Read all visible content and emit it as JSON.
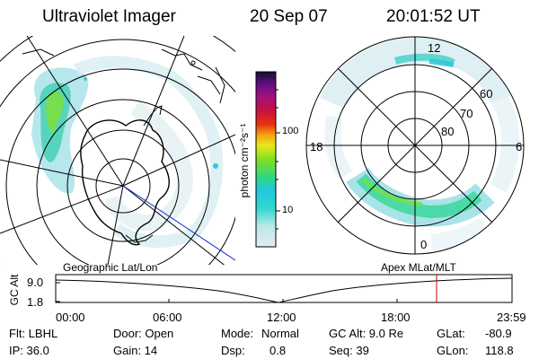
{
  "header": {
    "instrument": "Ultraviolet Imager",
    "date": "20 Sep 07",
    "time": "20:01:52 UT"
  },
  "colorbar": {
    "unit_label": "photon cm⁻²s⁻¹",
    "ticks": [
      "100",
      "10"
    ]
  },
  "right_map": {
    "mlt_labels": [
      "12",
      "18",
      "6",
      "0"
    ],
    "mlat_labels": [
      "60",
      "70",
      "80"
    ]
  },
  "map_labels": {
    "left": "Geographic Lat/Lon",
    "right": "Apex MLat/MLT"
  },
  "altitude_plot": {
    "ylabel": "GC Alt",
    "yticks": [
      "9.0",
      "1.8"
    ],
    "xticks": [
      "00:00",
      "06:00",
      "12:00",
      "18:00",
      "23:59"
    ],
    "current_time_marker_hours": 20.03
  },
  "footer": {
    "col1": [
      "Flt: LBHL",
      "IP: 36.0"
    ],
    "col2": [
      "Door: Open",
      "Gain: 14"
    ],
    "col3_labels": [
      "Mode:",
      "Dsp:"
    ],
    "col3_values": [
      "Normal",
      "0.8"
    ],
    "col4": [
      "GC Alt: 9.0 Re",
      "Seq: 39"
    ],
    "col5_labels": [
      "GLat:",
      "GLon:"
    ],
    "col5_values": [
      "-80.9",
      "118.8"
    ]
  },
  "colors": {
    "marker": "#cc0000",
    "meridian": "#1030c0"
  }
}
